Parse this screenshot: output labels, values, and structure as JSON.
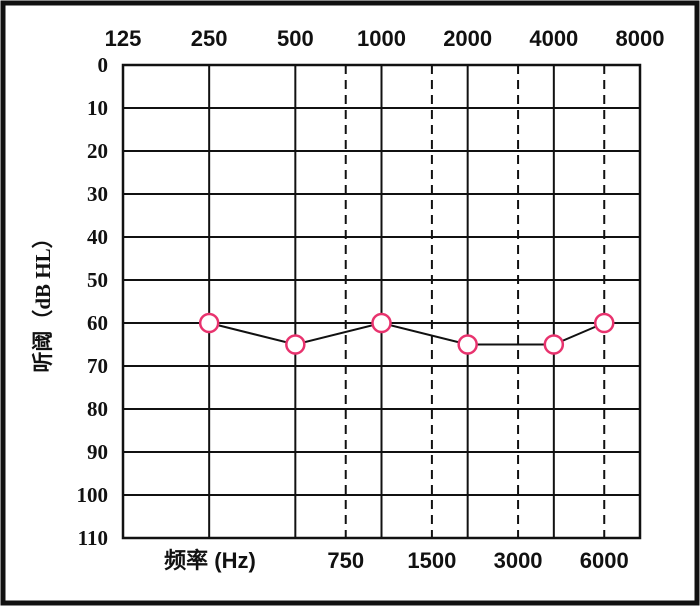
{
  "chart_data": {
    "type": "line",
    "x_label": "频率 (Hz)",
    "y_label": "听阈（dB HL）",
    "x": [
      250,
      500,
      1000,
      2000,
      4000,
      6000
    ],
    "series": [
      {
        "values": [
          60,
          65,
          60,
          65,
          65,
          60
        ],
        "color": "#111111",
        "marker_color": "#e8336e"
      }
    ],
    "xscale": "log",
    "xlim": [
      125,
      8000
    ],
    "xticks": [
      125,
      250,
      500,
      1000,
      2000,
      4000,
      8000
    ],
    "xticks_dashed": [
      750,
      1500,
      3000,
      6000
    ],
    "ylim": [
      0,
      110
    ],
    "y_inverted": true,
    "yticks": [
      0,
      10,
      20,
      30,
      40,
      50,
      60,
      70,
      80,
      90,
      100,
      110
    ],
    "grid": true
  }
}
